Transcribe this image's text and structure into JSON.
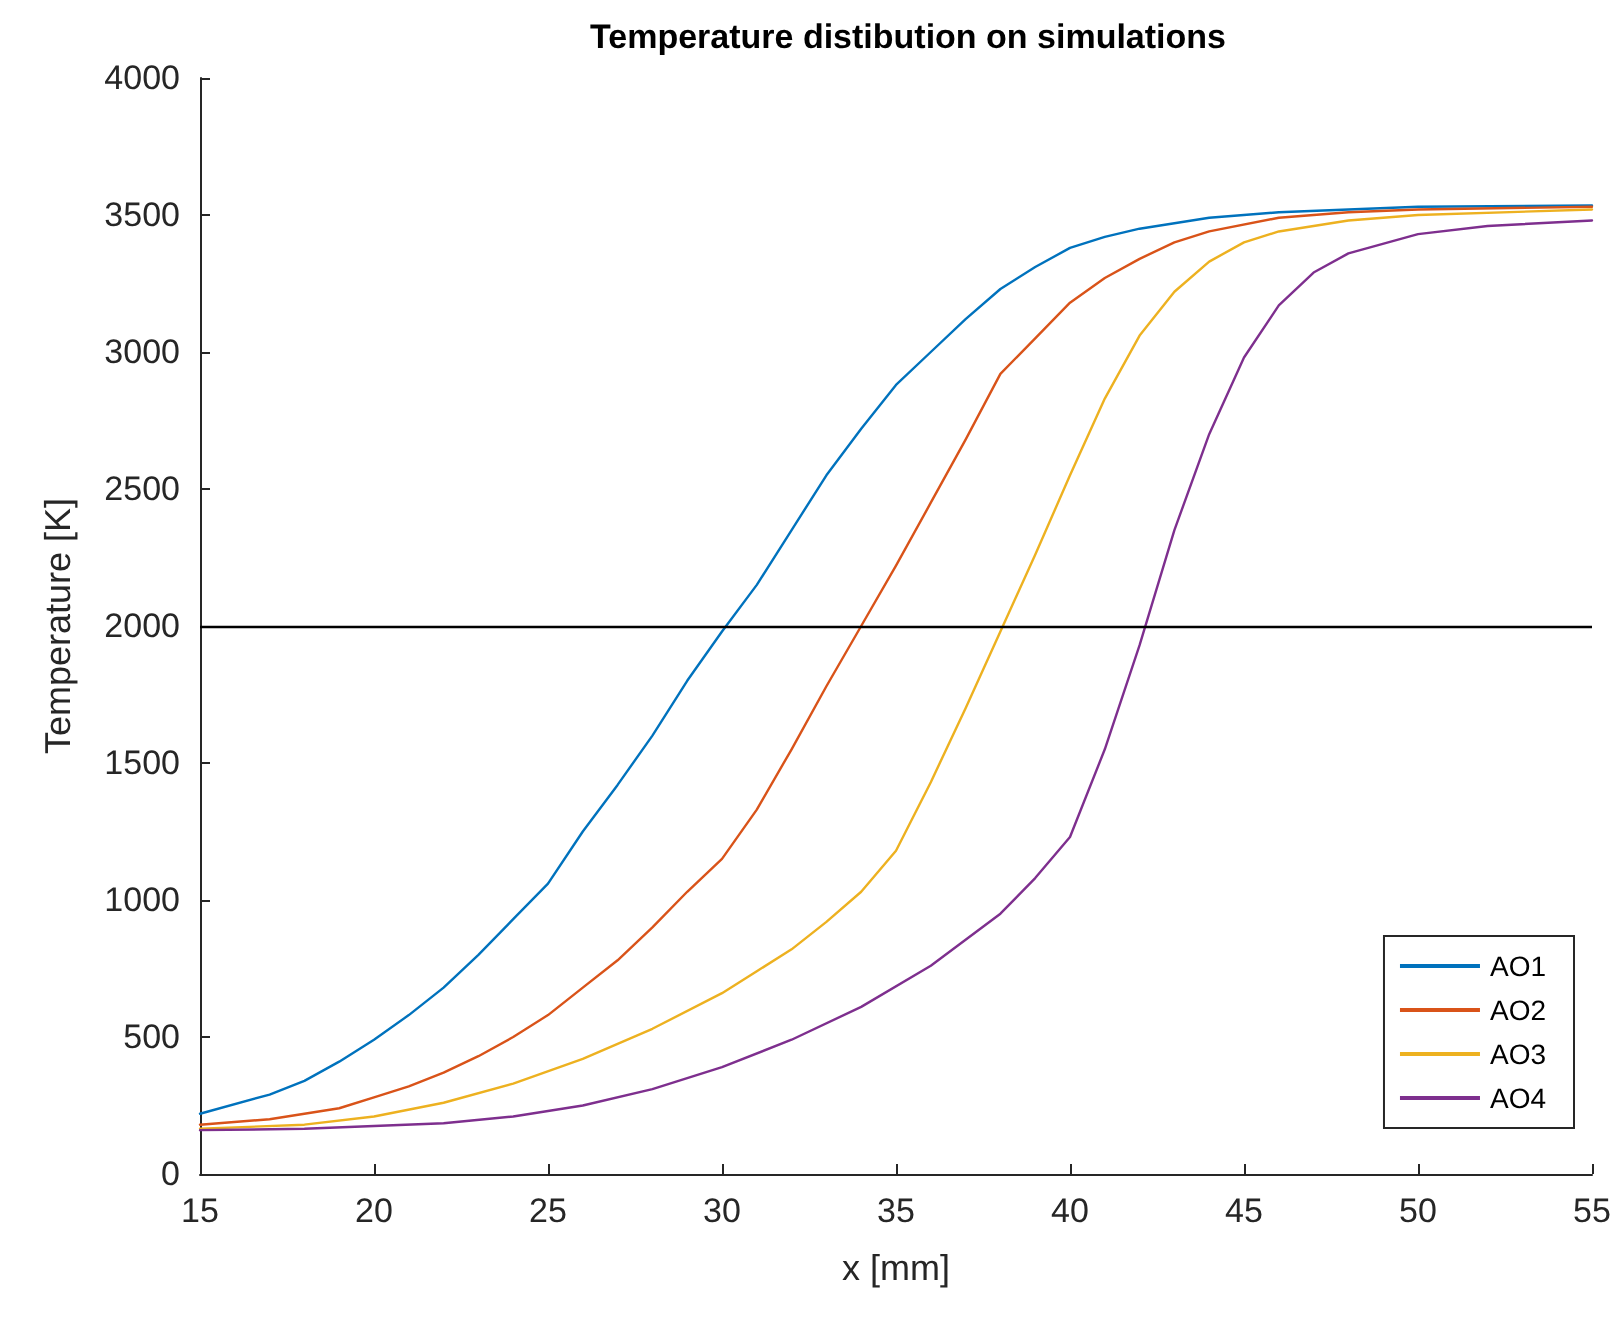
{
  "chart_data": {
    "type": "line",
    "title": "Temperature distibution on simulations",
    "xlabel": "x [mm]",
    "ylabel": "Temperature [K]",
    "xlim": [
      15,
      55
    ],
    "xticks": [
      15,
      20,
      25,
      30,
      35,
      40,
      45,
      50,
      55
    ],
    "ylim": [
      0,
      4000
    ],
    "yticks": [
      0,
      500,
      1000,
      1500,
      2000,
      2500,
      3000,
      3500,
      4000
    ],
    "grid": false,
    "legend": "bottom right",
    "marker": "none",
    "line_style": "solid",
    "ref_lines": [
      {
        "axis": "y",
        "value": 2000,
        "color": "#000000"
      }
    ],
    "series": [
      {
        "name": "AO1",
        "color": "#0072bd",
        "x": [
          15,
          17,
          18,
          19,
          20,
          21,
          22,
          23,
          24,
          25,
          26,
          27,
          28,
          29,
          30,
          31,
          32,
          33,
          34,
          35,
          36,
          37,
          38,
          39,
          40,
          41,
          42,
          44,
          46,
          50,
          55
        ],
        "values": [
          220,
          290,
          340,
          410,
          490,
          580,
          680,
          800,
          930,
          1060,
          1250,
          1420,
          1600,
          1800,
          1980,
          2150,
          2350,
          2550,
          2720,
          2880,
          3000,
          3120,
          3230,
          3310,
          3380,
          3420,
          3450,
          3490,
          3510,
          3530,
          3535
        ]
      },
      {
        "name": "AO2",
        "color": "#d95319",
        "x": [
          15,
          17,
          19,
          20,
          21,
          22,
          23,
          24,
          25,
          26,
          27,
          28,
          29,
          30,
          31,
          32,
          33,
          34,
          35,
          36,
          37,
          38,
          39,
          40,
          41,
          42,
          43,
          44,
          46,
          48,
          50,
          55
        ],
        "values": [
          180,
          200,
          240,
          280,
          320,
          370,
          430,
          500,
          580,
          680,
          780,
          900,
          1030,
          1150,
          1330,
          1550,
          1780,
          2000,
          2220,
          2450,
          2680,
          2920,
          3050,
          3180,
          3270,
          3340,
          3400,
          3440,
          3490,
          3510,
          3520,
          3530
        ]
      },
      {
        "name": "AO3",
        "color": "#edb120",
        "x": [
          15,
          18,
          20,
          22,
          24,
          26,
          28,
          30,
          31,
          32,
          33,
          34,
          35,
          36,
          37,
          38,
          39,
          40,
          41,
          42,
          43,
          44,
          45,
          46,
          48,
          50,
          55
        ],
        "values": [
          165,
          180,
          210,
          260,
          330,
          420,
          530,
          660,
          740,
          820,
          920,
          1030,
          1180,
          1430,
          1700,
          1980,
          2260,
          2550,
          2830,
          3060,
          3220,
          3330,
          3400,
          3440,
          3480,
          3500,
          3520
        ]
      },
      {
        "name": "AO4",
        "color": "#7e2f8e",
        "x": [
          15,
          18,
          20,
          22,
          24,
          26,
          28,
          30,
          32,
          34,
          36,
          38,
          39,
          40,
          41,
          42,
          43,
          44,
          45,
          46,
          47,
          48,
          50,
          52,
          55
        ],
        "values": [
          160,
          165,
          175,
          185,
          210,
          250,
          310,
          390,
          490,
          610,
          760,
          950,
          1080,
          1230,
          1550,
          1930,
          2350,
          2700,
          2980,
          3170,
          3290,
          3360,
          3430,
          3460,
          3480
        ]
      }
    ]
  }
}
